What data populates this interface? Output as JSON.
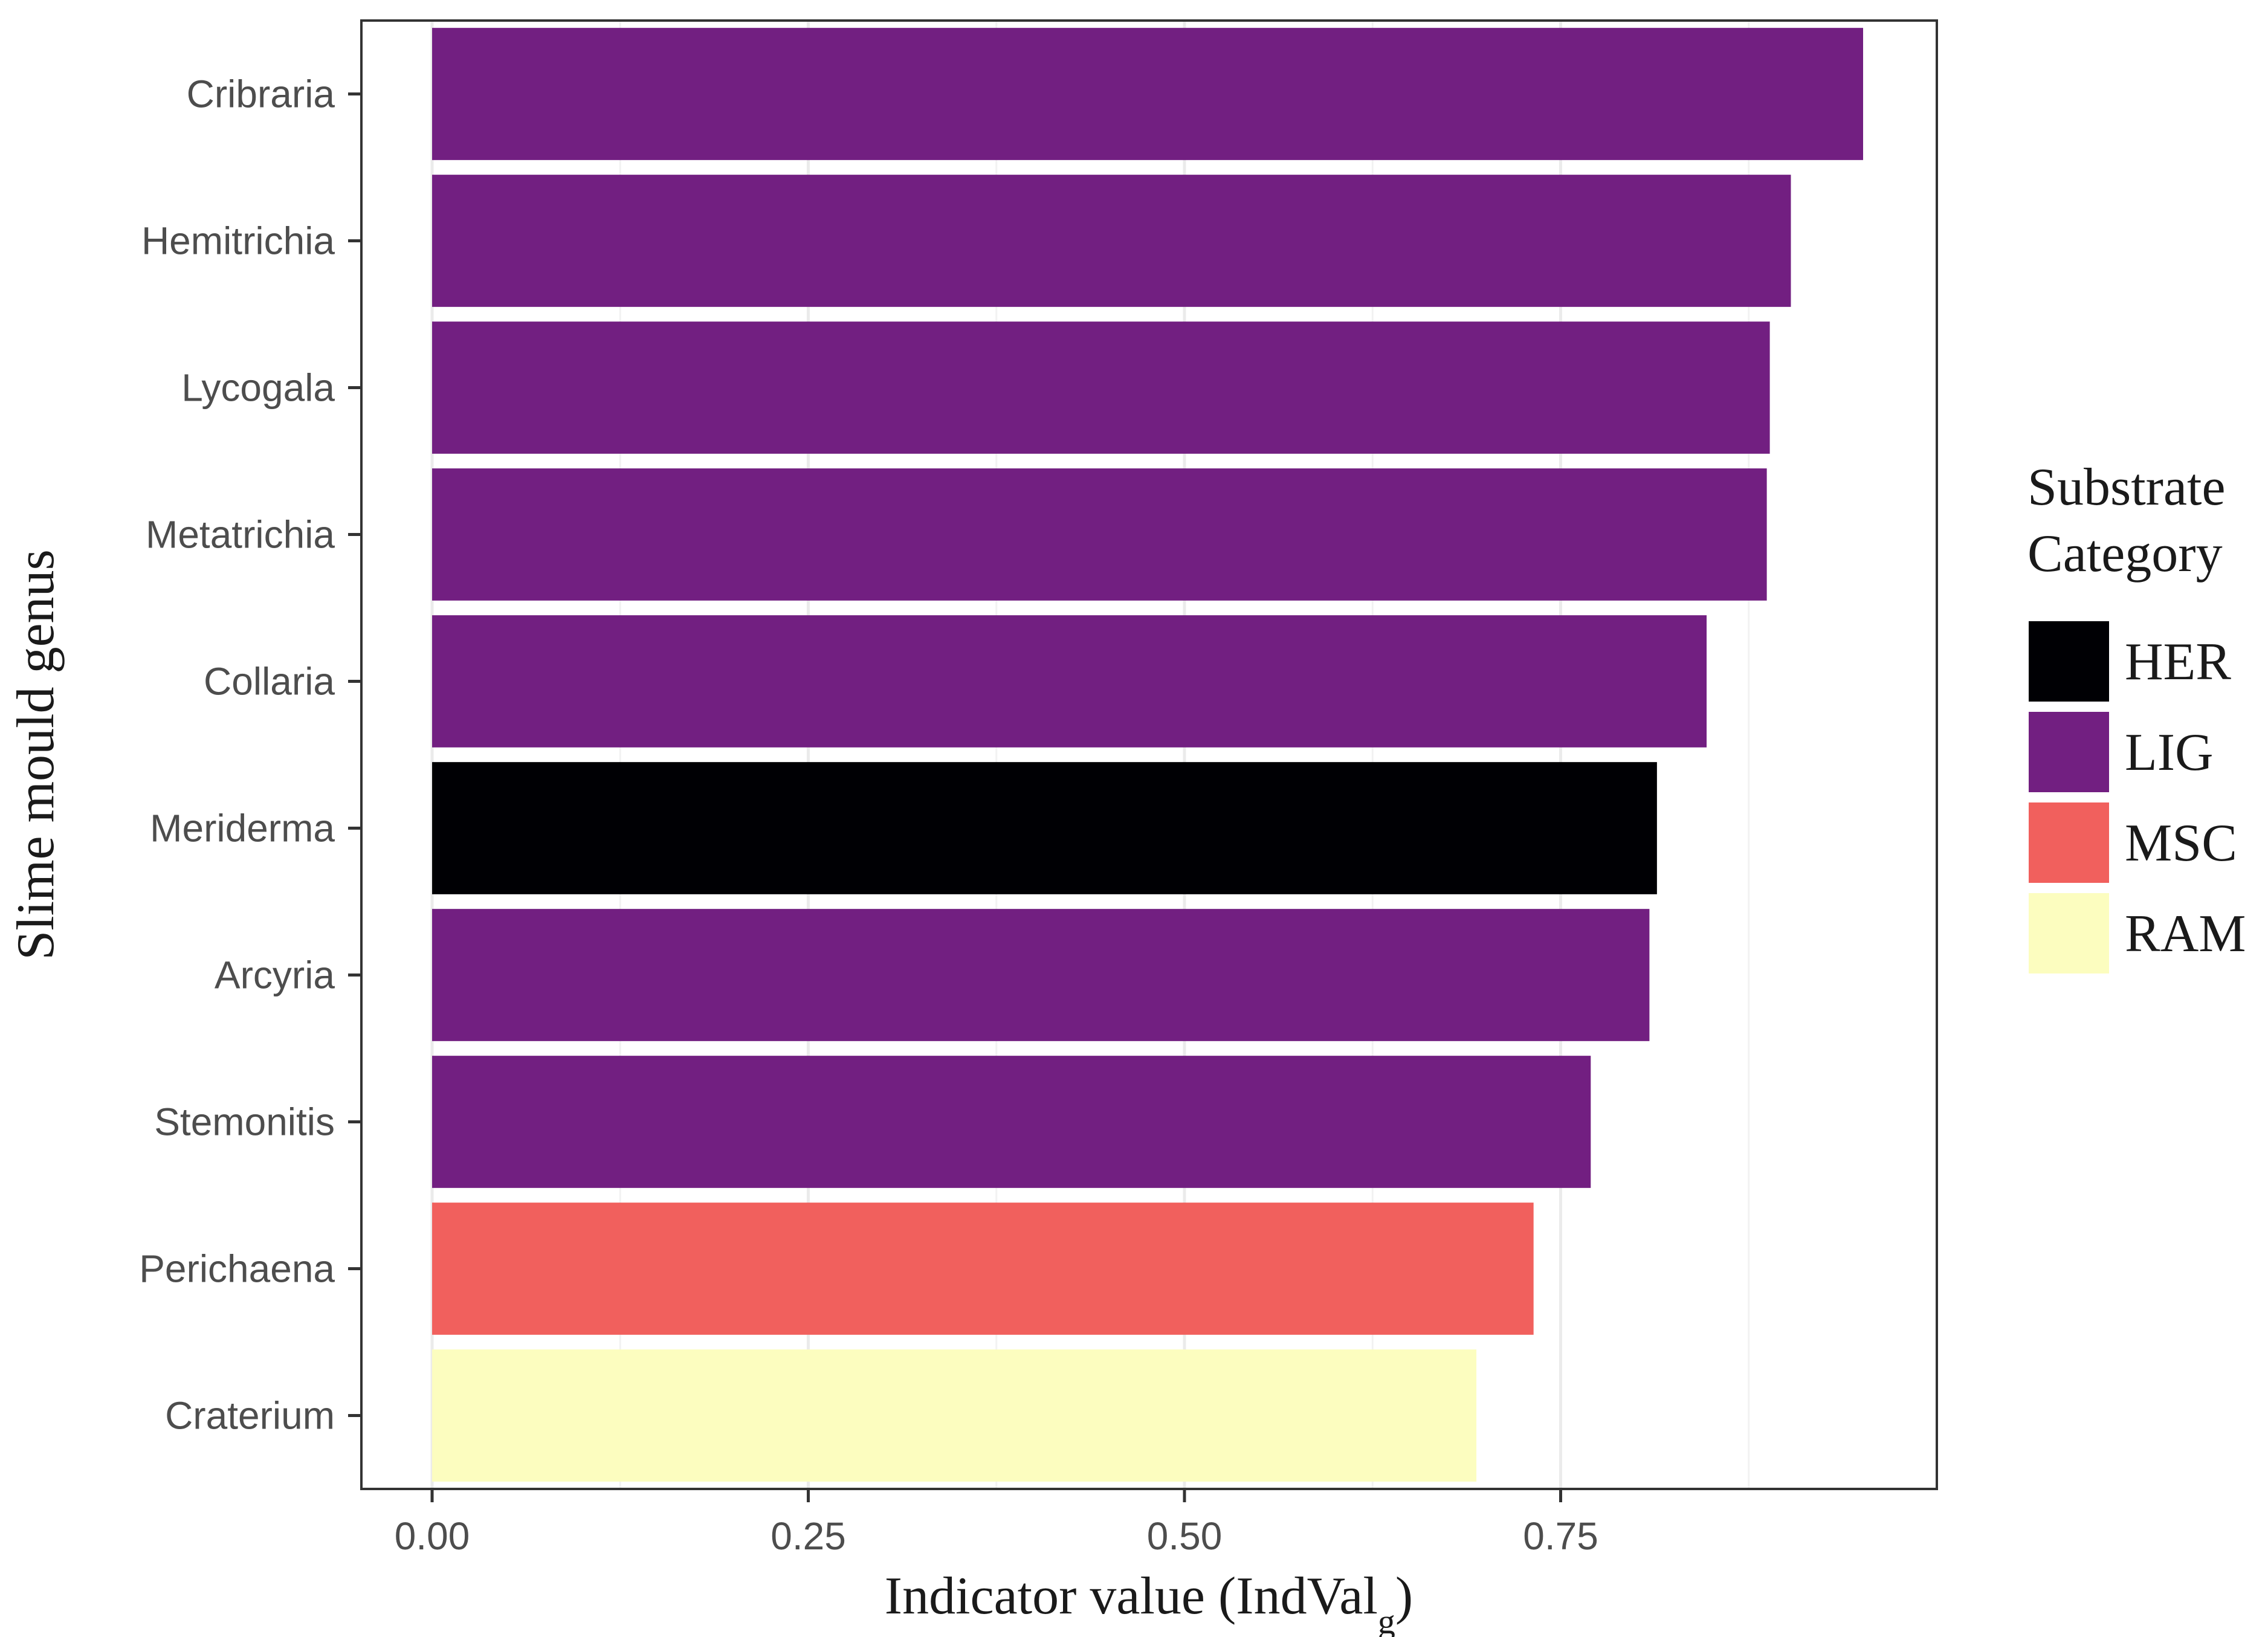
{
  "chart_data": {
    "type": "bar",
    "orientation": "horizontal",
    "title": "",
    "xlabel": "Indicator value (IndVal",
    "xlabel_subscript": "g",
    "xlabel_close": ")",
    "ylabel": "Slime mould genus",
    "xlim": [
      -0.047,
      1.0
    ],
    "xticks": [
      0.0,
      0.25,
      0.5,
      0.75
    ],
    "xtick_labels": [
      "0.00",
      "0.25",
      "0.50",
      "0.75"
    ],
    "grid": true,
    "categories": [
      "Cribraria",
      "Hemitrichia",
      "Lycogala",
      "Metatrichia",
      "Collaria",
      "Meriderma",
      "Arcyria",
      "Stemonitis",
      "Perichaena",
      "Craterium"
    ],
    "values": [
      0.951,
      0.903,
      0.889,
      0.887,
      0.847,
      0.814,
      0.809,
      0.77,
      0.732,
      0.694
    ],
    "groups": [
      "LIG",
      "LIG",
      "LIG",
      "LIG",
      "LIG",
      "HER",
      "LIG",
      "LIG",
      "MSC",
      "RAM"
    ],
    "legend": {
      "title_line1": "Substrate",
      "title_line2": "Category",
      "placement": "right",
      "items": [
        {
          "label": "HER",
          "color": "#000004"
        },
        {
          "label": "LIG",
          "color": "#721F81"
        },
        {
          "label": "MSC",
          "color": "#F1605D"
        },
        {
          "label": "RAM",
          "color": "#FCFDBF"
        }
      ]
    }
  }
}
